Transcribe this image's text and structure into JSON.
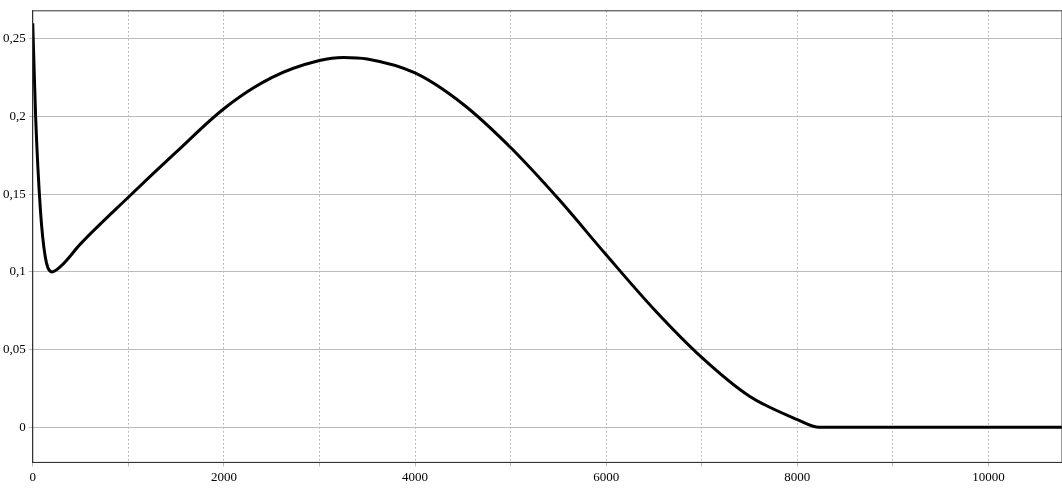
{
  "chart_data": {
    "type": "line",
    "x": [
      0,
      30,
      80,
      130,
      200,
      300,
      500,
      1000,
      1500,
      2000,
      2500,
      3000,
      3250,
      3500,
      4000,
      4500,
      5000,
      5500,
      6000,
      6500,
      7000,
      7500,
      8000,
      8230,
      10770
    ],
    "series": [
      {
        "color": "#000000",
        "values": [
          0.26,
          0.2,
          0.14,
          0.11,
          0.1,
          0.104,
          0.118,
          0.148,
          0.177,
          0.205,
          0.225,
          0.236,
          0.238,
          0.237,
          0.228,
          0.208,
          0.18,
          0.147,
          0.111,
          0.076,
          0.045,
          0.02,
          0.005,
          0,
          0
        ]
      }
    ],
    "xlim": [
      0,
      10770
    ],
    "ylim": [
      -0.0226,
      0.268
    ],
    "xticks": [
      0,
      {
        "value": 1000,
        "label": null
      },
      2000,
      {
        "value": 3000,
        "label": null
      },
      4000,
      {
        "value": 5000,
        "label": null
      },
      6000,
      {
        "value": 7000,
        "label": null
      },
      8000,
      {
        "value": 9000,
        "label": null
      },
      10000
    ],
    "yticks": [
      0,
      {
        "value": 0.05,
        "label": "0,05"
      },
      {
        "value": 0.1,
        "label": "0,1"
      },
      {
        "value": 0.15,
        "label": "0,15"
      },
      {
        "value": 0.2,
        "label": "0,2"
      },
      {
        "value": 0.25,
        "label": "0,25"
      }
    ],
    "grid": true,
    "legend": false,
    "marker": "none",
    "line_style": "solid"
  }
}
